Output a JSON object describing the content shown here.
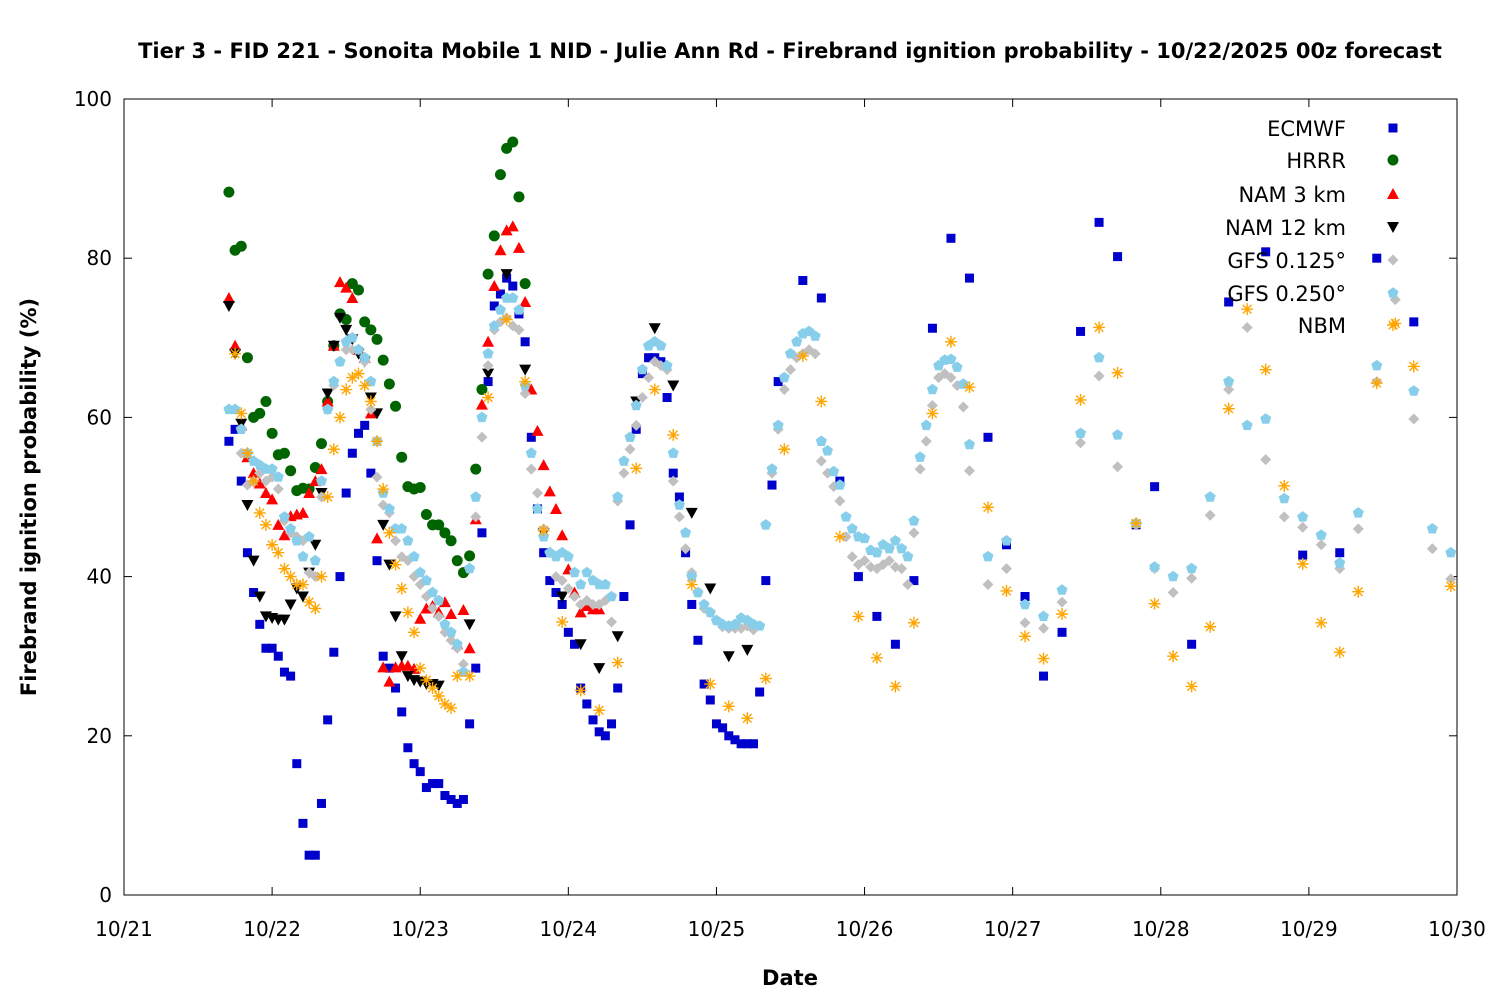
{
  "chart_data": {
    "type": "scatter",
    "title": "Tier 3 - FID 221 - Sonoita Mobile 1 NID - Julie Ann Rd - Firebrand ignition probability - 10/22/2025 00z forecast",
    "xlabel": "Date",
    "ylabel": "Firebrand ignition probability (%)",
    "x_units": "hours since 10/21 00z",
    "xlim": [
      0,
      216
    ],
    "ylim": [
      0,
      100
    ],
    "x_ticks": [
      {
        "hour": 0,
        "label": "10/21"
      },
      {
        "hour": 24,
        "label": "10/22"
      },
      {
        "hour": 48,
        "label": "10/23"
      },
      {
        "hour": 72,
        "label": "10/24"
      },
      {
        "hour": 96,
        "label": "10/25"
      },
      {
        "hour": 120,
        "label": "10/26"
      },
      {
        "hour": 144,
        "label": "10/27"
      },
      {
        "hour": 168,
        "label": "10/28"
      },
      {
        "hour": 192,
        "label": "10/29"
      },
      {
        "hour": 216,
        "label": "10/30"
      }
    ],
    "y_ticks": [
      "0",
      "20",
      "40",
      "60",
      "80",
      "100"
    ],
    "legend_position": "top-right",
    "series": [
      {
        "name": "ECMWF",
        "color": "#0000cc",
        "marker": "square",
        "segments": [
          {
            "start": 17,
            "step": 1,
            "values": [
              57,
              58.5,
              52,
              43,
              38,
              34,
              31,
              31,
              30,
              28,
              27.5,
              16.5,
              9,
              5,
              5,
              11.5,
              22,
              30.5,
              40,
              50.5,
              55.5,
              58,
              59,
              53,
              42,
              30,
              28.5,
              26,
              23,
              18.5,
              16.5,
              15.5,
              13.5,
              14,
              14,
              12.5,
              12,
              11.5,
              12,
              21.5,
              28.5,
              45.5,
              64.5,
              74,
              75.5,
              77.5,
              76.5,
              73,
              69.5,
              57.5,
              48.5,
              43,
              39.5,
              38,
              36.5,
              33,
              31.5,
              26,
              24,
              22,
              20.5,
              20,
              21.5,
              26,
              37.5,
              46.5,
              58.5,
              65.5,
              67.5,
              67.5,
              67,
              62.5,
              53,
              50,
              43,
              36.5,
              32,
              26.5,
              24.5,
              21.5,
              21,
              20,
              19.5,
              19,
              19,
              19,
              25.5,
              39.5,
              51.5,
              64.5
            ]
          },
          {
            "start": 110,
            "step": 3,
            "values": [
              77.2,
              75,
              52,
              40,
              35,
              31.5,
              39.5,
              71.2,
              82.5,
              77.5,
              57.5,
              44,
              37.5,
              27.5,
              33,
              70.8,
              84.5,
              80.2,
              46.5,
              51.3,
              null,
              31.5,
              null,
              74.5,
              null,
              80.8,
              null,
              42.7,
              null,
              43,
              null,
              80,
              null,
              72,
              null,
              null
            ]
          }
        ]
      },
      {
        "name": "HRRR",
        "color": "#006400",
        "marker": "circle",
        "segments": [
          {
            "start": 17,
            "step": 1,
            "values": [
              88.3,
              81,
              81.5,
              67.5,
              60,
              60.5,
              62,
              58,
              55.3,
              55.5,
              53.3,
              50.8,
              51.1,
              51,
              53.7,
              56.7,
              62,
              69,
              73,
              72.3,
              76.8,
              76,
              72,
              71,
              69.8,
              67.2,
              64.2,
              61.4,
              55,
              51.3,
              51,
              51.2,
              47.8,
              46.5,
              46.5,
              45.5,
              44.5,
              42,
              40.5,
              42.6,
              53.5,
              63.5,
              78,
              82.8,
              90.5,
              93.8,
              94.6,
              87.7,
              76.8
            ]
          }
        ]
      },
      {
        "name": "NAM 3 km",
        "color": "#ff0000",
        "marker": "triangle-up",
        "segments": [
          {
            "start": 17,
            "step": 1,
            "values": [
              75,
              69,
              59,
              55,
              53,
              51.7,
              50.5,
              49.7,
              46.5,
              45.2,
              47.6,
              47.8,
              48,
              50.5,
              52,
              53.5,
              62,
              69,
              77,
              76.3,
              75,
              68.5,
              67.5,
              60.5,
              44.8,
              28.6,
              26.8,
              28.6,
              28.8,
              28.8,
              28.4,
              34.7,
              36,
              36.3,
              35.5,
              36.8,
              35.3,
              31.5,
              35.8,
              31,
              47.2,
              61.6,
              69.5,
              76.5,
              81,
              83.5,
              84,
              81.3,
              74.5,
              63.5,
              58.3,
              54,
              50.7,
              48.5,
              45.2,
              40.9,
              38,
              35.5,
              36.3,
              35.9,
              35.9
            ]
          }
        ]
      },
      {
        "name": "NAM 12 km",
        "color": "#000000",
        "marker": "triangle-down",
        "segments": [
          {
            "start": 17,
            "step": 1,
            "values": [
              74,
              68,
              59.2,
              49,
              42,
              37.5,
              35,
              34.8,
              34.6,
              34.6,
              36.5,
              38.5,
              37.5,
              40.5,
              44,
              50.5,
              63,
              69,
              72.5,
              71,
              69.8,
              68,
              67,
              62.5,
              60.5,
              46.5,
              41.5,
              35,
              30,
              27.5,
              27,
              26.8,
              26.5,
              26.5,
              26.3
            ]
          },
          {
            "start": 56,
            "step": 3,
            "values": [
              34,
              65.5,
              78,
              66,
              45.5,
              37.5,
              31.5,
              28.5,
              32.5,
              62,
              71.2,
              64,
              48,
              38.5,
              30,
              30.8
            ]
          }
        ]
      },
      {
        "name": "GFS 0.125°",
        "color": "#c0c0c0",
        "marker": "diamond",
        "segments": [
          {
            "start": 19,
            "step": 1,
            "values": [
              55.5,
              51.5,
              52,
              53,
              52,
              52.5,
              51,
              47,
              45.5,
              45,
              44.5,
              40.5,
              40,
              50,
              61,
              64,
              67,
              68.5,
              68.5,
              68.5,
              67,
              61,
              52.5,
              49,
              48,
              44.5,
              42.5,
              42,
              40,
              39,
              37.5,
              36,
              35,
              33,
              32,
              31,
              29,
              41,
              47.5,
              57.5,
              66.5,
              71,
              72,
              72.5,
              71.5,
              71,
              63,
              53.5,
              50.5,
              46,
              43,
              40,
              39.5,
              38.5,
              37.5,
              36.5,
              37,
              36.5,
              36.5,
              37,
              34.3,
              49.5,
              53,
              56,
              59,
              62.5,
              65,
              67,
              66.5,
              66,
              52,
              47.5,
              43.5,
              40.5,
              38,
              36,
              35.5,
              34.5,
              33.7,
              33.5,
              33.5,
              33.5,
              33.8,
              33.3,
              null,
              46.5,
              53,
              58.5,
              63.5,
              66,
              67.5,
              68,
              68.5,
              68,
              54.5,
              53,
              51.3,
              49.5,
              45,
              42.5,
              41.5,
              42,
              41.2,
              41,
              41.5,
              42,
              41.2,
              41,
              39,
              45.5,
              53.5,
              57,
              61.5,
              65,
              65.5,
              65,
              64,
              61.3,
              53.3
            ]
          },
          {
            "start": 140,
            "step": 3,
            "values": [
              39,
              41,
              34.2,
              33.5,
              36.8,
              56.8,
              65.2,
              53.8,
              46.5,
              41,
              38,
              39.8,
              47.7,
              63.5,
              71.3,
              54.7,
              47.5,
              46.2,
              44,
              41,
              46,
              64.5,
              74.8,
              59.8,
              43.5,
              39.7
            ]
          }
        ]
      },
      {
        "name": "GFS 0.250°",
        "color": "#87ceeb",
        "marker": "pentagon",
        "segments": [
          {
            "start": 17,
            "step": 1,
            "values": [
              61,
              61,
              58.5,
              55.5,
              54.5,
              54,
              53.5,
              53.5,
              52.5,
              47.5,
              46,
              44.5,
              42.5,
              45,
              42,
              52,
              61,
              64.5,
              67,
              69.5,
              70,
              68.5,
              67.5,
              64.5,
              57,
              50.5,
              48.5,
              46,
              46,
              44.5,
              42.5,
              40.5,
              39.5,
              38,
              37,
              34,
              33,
              31.5,
              28,
              41,
              50,
              60,
              68,
              71.5,
              73.5,
              75,
              75,
              73.5,
              64,
              55.5,
              48.5,
              45,
              43,
              42.5,
              43,
              42.5,
              40.5,
              39,
              40.5,
              39.5,
              39,
              39,
              37.5,
              50,
              54.5,
              57.5,
              61.5,
              66,
              69,
              69.5,
              69,
              66.5,
              55.5,
              49,
              45.5,
              40,
              38,
              36.5,
              35.5,
              34.5,
              34,
              33.8,
              34,
              34.8,
              34.5,
              34,
              33.8,
              46.5,
              53.5,
              59,
              65,
              68,
              69.5,
              70.5,
              70.8,
              70.2,
              57,
              55.8,
              53.2,
              51.5,
              47.5,
              46,
              45,
              44.8,
              43.3,
              43,
              44,
              43.5,
              44.5,
              43.5,
              42.5,
              47,
              55,
              59,
              63.5,
              66.5,
              67.2,
              67.3,
              66.3,
              64.2,
              56.6
            ]
          },
          {
            "start": 140,
            "step": 3,
            "values": [
              42.5,
              44.5,
              36.5,
              35,
              38.3,
              58,
              67.5,
              57.8,
              46.7,
              41.2,
              40,
              41,
              50,
              64.5,
              59,
              59.8,
              49.8,
              47.5,
              45.2,
              41.7,
              48,
              66.5,
              null,
              63.3,
              46,
              43
            ]
          }
        ]
      },
      {
        "name": "NBM",
        "color": "#ffa500",
        "marker": "asterisk",
        "segments": [
          {
            "start": 18,
            "step": 1,
            "values": [
              68,
              60.5,
              55.5,
              52,
              48,
              46.5,
              44,
              43,
              41,
              40,
              39,
              39,
              36.8,
              36,
              40,
              50,
              56,
              60,
              63.5,
              65,
              65.5,
              64,
              62,
              57,
              51,
              45.5,
              41.5,
              38.5,
              35.5,
              33,
              28.5,
              27,
              26,
              25,
              24,
              23.5,
              27.5
            ]
          },
          {
            "start": 56,
            "step": 3,
            "values": [
              27.5,
              62.5,
              72.3,
              64.5,
              45.8,
              34.3,
              25.7,
              23.2,
              29.2,
              53.6,
              63.5,
              57.8,
              39,
              26.5,
              23.7,
              22.2,
              27.2,
              56,
              67.7,
              62,
              45,
              35,
              29.8,
              26.2,
              34.2,
              60.5,
              69.5,
              63.8,
              48.7,
              38.2,
              32.5,
              29.7,
              35.3,
              62.2,
              71.3,
              65.6,
              46.7,
              36.6,
              30,
              26.2,
              33.7,
              61.1,
              73.6,
              66,
              51.4,
              41.6,
              34.2,
              30.5,
              38.1,
              64.3,
              71.8,
              66.4,
              null,
              38.8
            ]
          }
        ]
      }
    ]
  }
}
